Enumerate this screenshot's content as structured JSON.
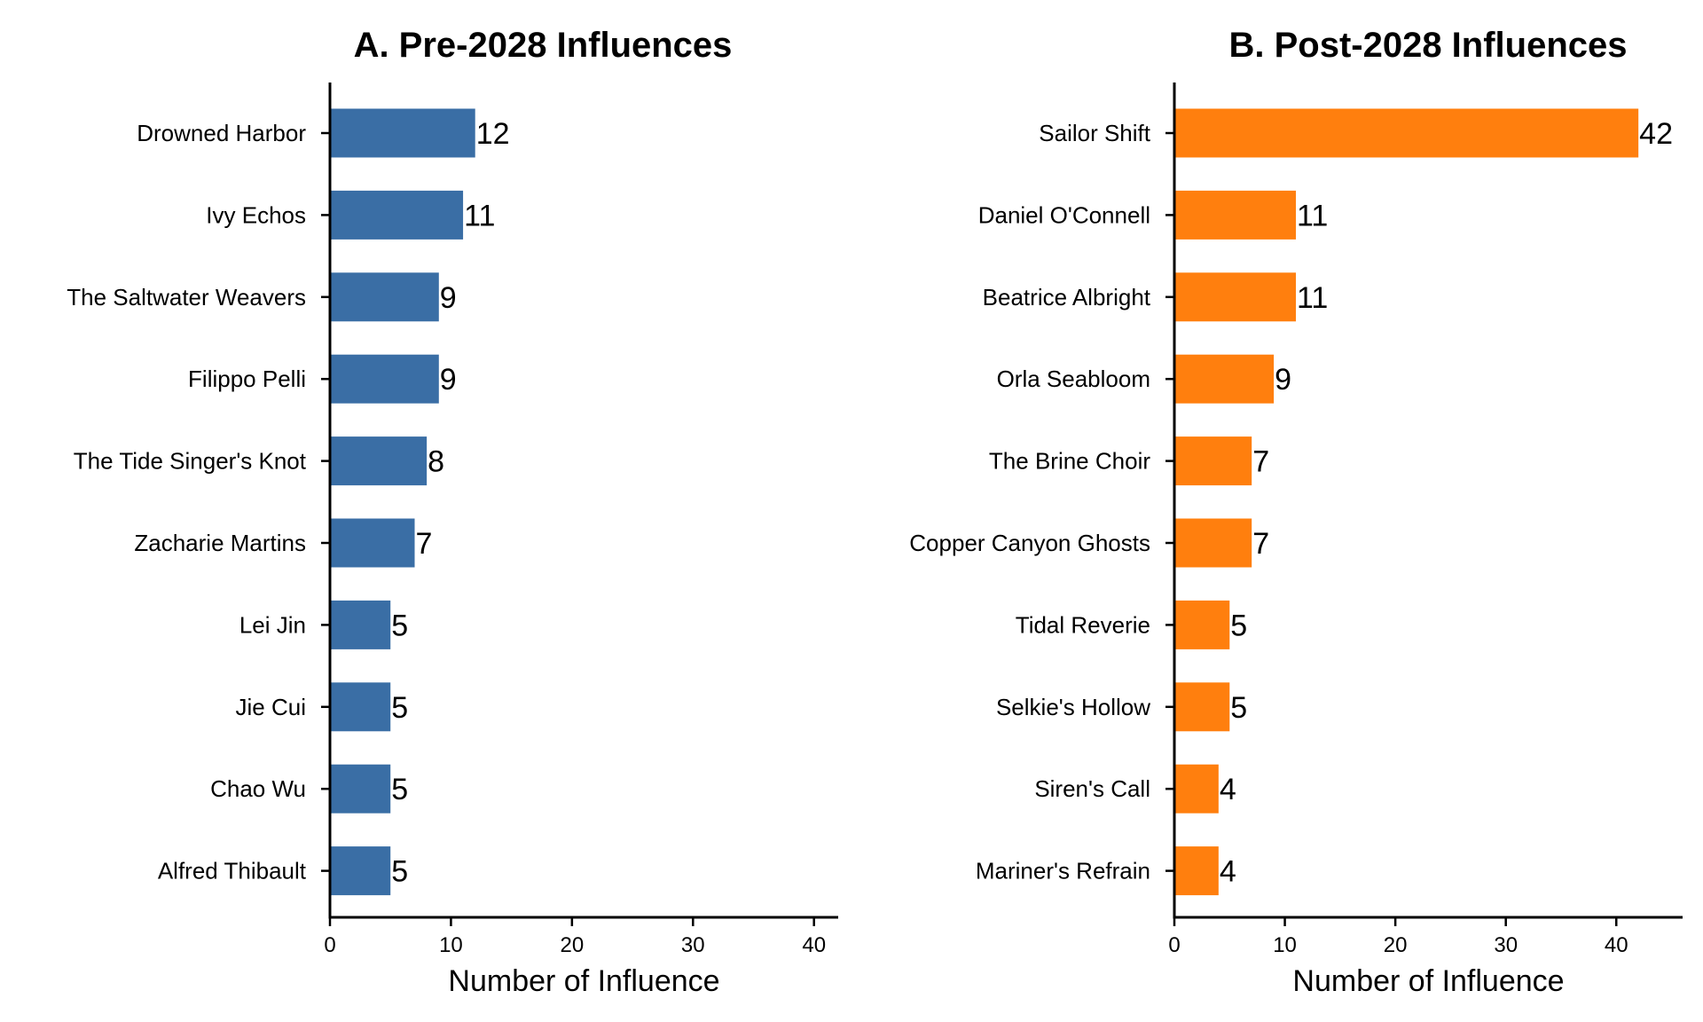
{
  "chart_data": [
    {
      "type": "bar",
      "orientation": "horizontal",
      "title": "A. Pre-2028 Influences",
      "xlabel": "Number of Influence",
      "ylabel": "",
      "xlim": [
        0,
        42
      ],
      "xticks": [
        0,
        10,
        20,
        30,
        40
      ],
      "grid": false,
      "color": "#3a6ea5",
      "categories": [
        "Drowned Harbor",
        "Ivy Echos",
        "The Saltwater Weavers",
        "Filippo Pelli",
        "The Tide Singer's Knot",
        "Zacharie Martins",
        "Lei Jin",
        "Jie Cui",
        "Chao Wu",
        "Alfred Thibault"
      ],
      "values": [
        12,
        11,
        9,
        9,
        8,
        7,
        5,
        5,
        5,
        5
      ]
    },
    {
      "type": "bar",
      "orientation": "horizontal",
      "title": "B. Post-2028 Influences",
      "xlabel": "Number of Influence",
      "ylabel": "",
      "xlim": [
        0,
        46
      ],
      "xticks": [
        0,
        10,
        20,
        30,
        40
      ],
      "grid": false,
      "color": "#ff7f0e",
      "categories": [
        "Sailor Shift",
        "Daniel O'Connell",
        "Beatrice Albright",
        "Orla Seabloom",
        "The Brine Choir",
        "Copper Canyon Ghosts",
        "Tidal Reverie",
        "Selkie's Hollow",
        "Siren's Call",
        "Mariner's Refrain"
      ],
      "values": [
        42,
        11,
        11,
        9,
        7,
        7,
        5,
        5,
        4,
        4
      ]
    }
  ]
}
